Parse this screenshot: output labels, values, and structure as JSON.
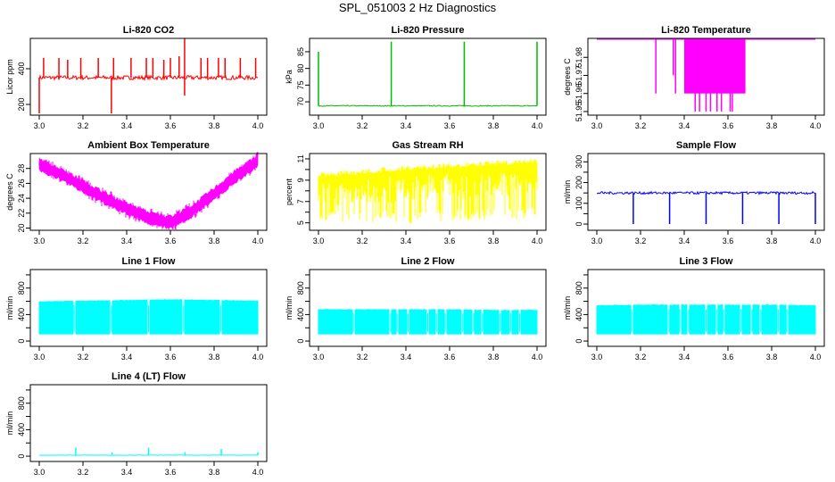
{
  "figure_title": "SPL_051003  2 Hz Diagnostics",
  "chart_data": [
    {
      "title": "Li-820 CO2",
      "type": "line",
      "color": "#ff0000",
      "xlabel": "",
      "ylabel": "Licor ppm",
      "xlim": [
        3.0,
        4.0
      ],
      "ylim": [
        140,
        570
      ],
      "xticks": [
        "3.0",
        "3.2",
        "3.4",
        "3.6",
        "3.8",
        "4.0"
      ],
      "yticks": [
        200,
        400
      ],
      "baseline": 350,
      "noise": 12,
      "spikes_up": [
        [
          3.02,
          460
        ],
        [
          3.09,
          460
        ],
        [
          3.13,
          450
        ],
        [
          3.19,
          460
        ],
        [
          3.27,
          460
        ],
        [
          3.34,
          460
        ],
        [
          3.42,
          460
        ],
        [
          3.49,
          460
        ],
        [
          3.52,
          460
        ],
        [
          3.57,
          450
        ],
        [
          3.6,
          460
        ],
        [
          3.64,
          470
        ],
        [
          3.665,
          570
        ],
        [
          3.74,
          460
        ],
        [
          3.77,
          460
        ],
        [
          3.82,
          460
        ],
        [
          3.85,
          460
        ],
        [
          3.92,
          460
        ],
        [
          3.99,
          460
        ]
      ],
      "spikes_down": [
        [
          3.0,
          150
        ],
        [
          3.33,
          150
        ],
        [
          3.665,
          250
        ]
      ]
    },
    {
      "title": "Li-820 Pressure",
      "type": "line",
      "color": "#00bb00",
      "xlabel": "",
      "ylabel": "kPa",
      "xlim": [
        3.0,
        4.0
      ],
      "ylim": [
        66,
        89
      ],
      "xticks": [
        "3.0",
        "3.2",
        "3.4",
        "3.6",
        "3.8",
        "4.0"
      ],
      "yticks": [
        70,
        75,
        80,
        85
      ],
      "baseline": 68.8,
      "noise": 0.15,
      "spikes_up": [
        [
          3.0,
          85
        ],
        [
          3.333,
          88
        ],
        [
          3.667,
          88
        ],
        [
          4.0,
          88
        ]
      ],
      "spikes_down": []
    },
    {
      "title": "Li-820 Temperature",
      "type": "line",
      "color": "#ff00ff",
      "xlabel": "",
      "ylabel": "degrees C",
      "xlim": [
        3.0,
        4.0
      ],
      "ylim": [
        51.948,
        51.9905
      ],
      "xticks": [
        "3.0",
        "3.2",
        "3.4",
        "3.6",
        "3.8",
        "4.0"
      ],
      "yticks": [
        51.95,
        51.96,
        51.97,
        51.98
      ],
      "ytick_labels": [
        "51.95",
        "51.96",
        "51.97",
        "51.98"
      ],
      "baseline": 51.99,
      "noise": 0,
      "spikes_up": [],
      "spikes_down": [
        [
          3.27,
          51.96
        ],
        [
          3.35,
          51.97
        ],
        [
          3.36,
          51.96
        ],
        [
          3.45,
          51.95
        ],
        [
          3.47,
          51.95
        ],
        [
          3.5,
          51.95
        ],
        [
          3.52,
          51.95
        ],
        [
          3.55,
          51.95
        ],
        [
          3.57,
          51.95
        ],
        [
          3.61,
          51.95
        ],
        [
          3.62,
          51.95
        ]
      ],
      "band": [
        3.4,
        3.68,
        51.96,
        51.99
      ]
    },
    {
      "title": "Ambient Box Temperature",
      "type": "line",
      "color": "#ff00ff",
      "xlabel": "",
      "ylabel": "degrees C",
      "xlim": [
        3.0,
        4.0
      ],
      "ylim": [
        19.7,
        30
      ],
      "xticks": [
        "3.0",
        "3.2",
        "3.4",
        "3.6",
        "3.8",
        "4.0"
      ],
      "yticks": [
        20,
        22,
        24,
        26,
        28
      ],
      "curve_x": [
        3.0,
        3.1,
        3.2,
        3.3,
        3.4,
        3.5,
        3.6,
        3.7,
        3.8,
        3.9,
        4.0
      ],
      "curve_y": [
        28.5,
        27.2,
        25.6,
        24.0,
        22.6,
        21.4,
        20.7,
        22.3,
        24.6,
        27.0,
        29.0
      ],
      "noise": 1.0
    },
    {
      "title": "Gas Stream RH",
      "type": "line",
      "color": "#ffff00",
      "xlabel": "",
      "ylabel": "percent",
      "xlim": [
        3.0,
        4.0
      ],
      "ylim": [
        4.3,
        11.5
      ],
      "xticks": [
        "3.0",
        "3.2",
        "3.4",
        "3.6",
        "3.8",
        "4.0"
      ],
      "yticks": [
        5,
        6,
        7,
        8,
        9,
        10,
        11
      ],
      "ytick_labels": [
        "5",
        "",
        "7",
        "",
        "9",
        "",
        "11"
      ],
      "upper": [
        9.8,
        10.0,
        10.3,
        10.5,
        10.7,
        10.9,
        11.0
      ],
      "lower": [
        5.0,
        5.0,
        4.9,
        5.0,
        5.2,
        5.3,
        5.3
      ]
    },
    {
      "title": "Sample Flow",
      "type": "line",
      "color": "#0000ff",
      "xlabel": "",
      "ylabel": "ml/min",
      "xlim": [
        3.0,
        4.0
      ],
      "ylim": [
        -30,
        340
      ],
      "xticks": [
        "3.0",
        "3.2",
        "3.4",
        "3.6",
        "3.8",
        "4.0"
      ],
      "yticks": [
        0,
        50,
        100,
        150,
        200,
        250,
        300
      ],
      "ytick_labels": [
        "0",
        "",
        "100",
        "",
        "200",
        "",
        "300"
      ],
      "baseline": 150,
      "noise": 6,
      "spikes_up": [],
      "spikes_down": [
        [
          3.167,
          0
        ],
        [
          3.333,
          0
        ],
        [
          3.5,
          0
        ],
        [
          3.667,
          0
        ],
        [
          3.833,
          0
        ],
        [
          4.0,
          0
        ]
      ]
    },
    {
      "title": "Line 1 Flow",
      "type": "line",
      "color": "#00ffff",
      "xlabel": "",
      "ylabel": "ml/min",
      "xlim": [
        3.0,
        4.0
      ],
      "ylim": [
        -80,
        1080
      ],
      "xticks": [
        "3.0",
        "3.2",
        "3.4",
        "3.6",
        "3.8",
        "4.0"
      ],
      "yticks": [
        0,
        200,
        400,
        600,
        800,
        1000
      ],
      "ytick_labels": [
        "0",
        "",
        "400",
        "",
        "800",
        ""
      ],
      "band_top": [
        600,
        610,
        620,
        630,
        620,
        610
      ],
      "band_bottom": 100,
      "gaps": [
        3.16,
        3.33,
        3.5,
        3.66,
        3.83
      ]
    },
    {
      "title": "Line 2 Flow",
      "type": "line",
      "color": "#00ffff",
      "xlabel": "",
      "ylabel": "ml/min",
      "xlim": [
        3.0,
        4.0
      ],
      "ylim": [
        -80,
        1080
      ],
      "xticks": [
        "3.0",
        "3.2",
        "3.4",
        "3.6",
        "3.8",
        "4.0"
      ],
      "yticks": [
        0,
        200,
        400,
        600,
        800,
        1000
      ],
      "ytick_labels": [
        "0",
        "",
        "400",
        "",
        "800",
        ""
      ],
      "band_top": [
        480,
        480,
        480,
        480,
        470,
        470
      ],
      "band_bottom": 100,
      "gaps": [
        3.16,
        3.33,
        3.36,
        3.41,
        3.5,
        3.54,
        3.58,
        3.66,
        3.71,
        3.75,
        3.83,
        3.88,
        3.92
      ]
    },
    {
      "title": "Line 3 Flow",
      "type": "line",
      "color": "#00ffff",
      "xlabel": "",
      "ylabel": "ml/min",
      "xlim": [
        3.0,
        4.0
      ],
      "ylim": [
        -80,
        1080
      ],
      "xticks": [
        "3.0",
        "3.2",
        "3.4",
        "3.6",
        "3.8",
        "4.0"
      ],
      "yticks": [
        0,
        200,
        400,
        600,
        800,
        1000
      ],
      "ytick_labels": [
        "0",
        "",
        "400",
        "",
        "800",
        ""
      ],
      "band_top": [
        540,
        550,
        550,
        550,
        550,
        540
      ],
      "band_bottom": 100,
      "gaps": [
        3.16,
        3.33,
        3.38,
        3.42,
        3.5,
        3.55,
        3.58,
        3.66,
        3.71,
        3.75,
        3.83,
        3.87
      ]
    },
    {
      "title": "Line 4 (LT) Flow",
      "type": "line",
      "color": "#00ffff",
      "xlabel": "",
      "ylabel": "ml/min",
      "xlim": [
        3.0,
        4.0
      ],
      "ylim": [
        -80,
        1080
      ],
      "xticks": [
        "3.0",
        "3.2",
        "3.4",
        "3.6",
        "3.8",
        "4.0"
      ],
      "yticks": [
        0,
        200,
        400,
        600,
        800,
        1000
      ],
      "ytick_labels": [
        "0",
        "",
        "400",
        "",
        "800",
        ""
      ],
      "baseline": 15,
      "noise": 3,
      "spikes_up": [
        [
          3.167,
          130
        ],
        [
          3.333,
          60
        ],
        [
          3.5,
          130
        ],
        [
          3.667,
          60
        ],
        [
          3.833,
          110
        ],
        [
          4.0,
          60
        ]
      ],
      "spikes_down": []
    }
  ]
}
